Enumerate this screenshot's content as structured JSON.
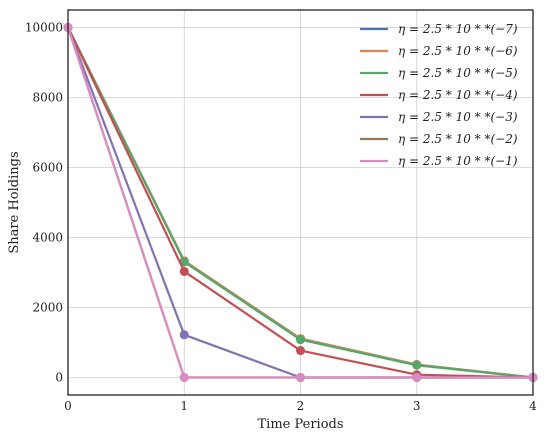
{
  "chart_data": {
    "type": "line",
    "xlabel": "Time Periods",
    "ylabel": "Share Holdings",
    "x": [
      0,
      1,
      2,
      3,
      4
    ],
    "xlim": [
      0,
      4
    ],
    "ylim": [
      -500,
      10500
    ],
    "xticks": [
      0,
      1,
      2,
      3,
      4
    ],
    "yticks": [
      0,
      2000,
      4000,
      6000,
      8000,
      10000
    ],
    "grid": true,
    "legend_position": "top-right",
    "series": [
      {
        "name": "η = 2.5 * 10 * *(−7)",
        "color": "#4c72b0",
        "values": [
          10000,
          3333,
          1111,
          370,
          0
        ]
      },
      {
        "name": "η = 2.5 * 10 * *(−6)",
        "color": "#dd8452",
        "values": [
          10000,
          3330,
          1108,
          368,
          0
        ]
      },
      {
        "name": "η = 2.5 * 10 * *(−5)",
        "color": "#55a868",
        "values": [
          10000,
          3300,
          1080,
          350,
          0
        ]
      },
      {
        "name": "η = 2.5 * 10 * *(−4)",
        "color": "#c44e52",
        "values": [
          10000,
          3030,
          770,
          80,
          0
        ]
      },
      {
        "name": "η = 2.5 * 10 * *(−3)",
        "color": "#8172b3",
        "values": [
          10000,
          1220,
          0,
          0,
          0
        ]
      },
      {
        "name": "η = 2.5 * 10 * *(−2)",
        "color": "#937860",
        "values": [
          10000,
          0,
          0,
          0,
          0
        ]
      },
      {
        "name": "η = 2.5 * 10 * *(−1)",
        "color": "#da8bc3",
        "values": [
          10000,
          0,
          0,
          0,
          0
        ]
      }
    ]
  }
}
